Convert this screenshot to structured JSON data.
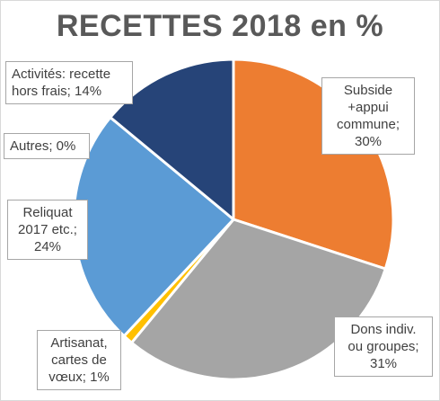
{
  "chart_data": {
    "type": "pie",
    "title": "RECETTES 2018 en %",
    "slices": [
      {
        "lines": [
          "Subside",
          "+appui",
          "commune;",
          "30%"
        ],
        "value": 30,
        "color": "#ED7D31"
      },
      {
        "lines": [
          "Dons indiv.",
          "ou groupes;",
          "31%"
        ],
        "value": 31,
        "color": "#A5A5A5"
      },
      {
        "lines": [
          "Artisanat,",
          "cartes de",
          "vœux; 1%"
        ],
        "value": 1,
        "color": "#FFC000"
      },
      {
        "lines": [
          "Reliquat",
          "2017 etc.;",
          "24%"
        ],
        "value": 24,
        "color": "#5B9BD5"
      },
      {
        "lines": [
          "Autres; 0%"
        ],
        "value": 0,
        "color": "#4472C4"
      },
      {
        "lines": [
          "Activités: recette",
          "hors frais; 14%"
        ],
        "value": 14,
        "color": "#264478"
      }
    ]
  }
}
